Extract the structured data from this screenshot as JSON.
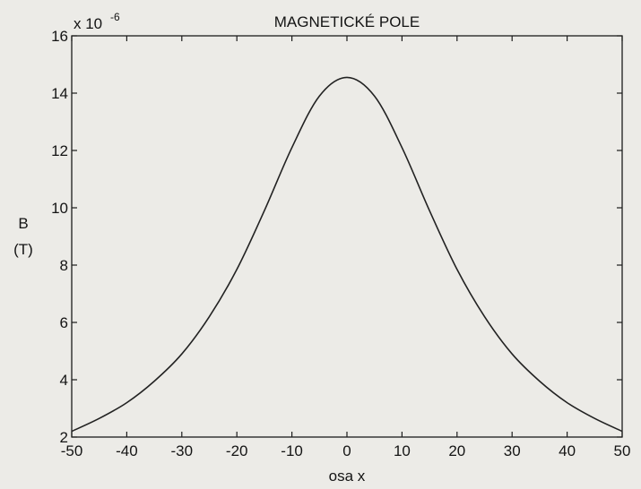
{
  "chart_data": {
    "type": "line",
    "title": "MAGNETICKÉ POLE",
    "xlabel": "osa x",
    "ylabel_line1": "B",
    "ylabel_line2": "(T)",
    "y_exponent_base": "x 10",
    "y_exponent_power": "-6",
    "xlim": [
      -50,
      50
    ],
    "ylim": [
      2,
      16
    ],
    "x_ticks": [
      -50,
      -40,
      -30,
      -20,
      -10,
      0,
      10,
      20,
      30,
      40,
      50
    ],
    "x_tick_labels": [
      "-50",
      "-40",
      "-30",
      "-20",
      "-10",
      "0",
      "10",
      "20",
      "30",
      "40",
      "50"
    ],
    "y_ticks": [
      2,
      4,
      6,
      8,
      10,
      12,
      14,
      16
    ],
    "y_tick_labels": [
      "2",
      "4",
      "6",
      "8",
      "10",
      "12",
      "14",
      "16"
    ],
    "grid": false,
    "line_color": "#222222",
    "series": [
      {
        "x": [
          -50,
          -45,
          -40,
          -35,
          -30,
          -25,
          -20,
          -15,
          -10,
          -5,
          0,
          5,
          10,
          15,
          20,
          25,
          30,
          35,
          40,
          45,
          50
        ],
        "y": [
          2.2,
          2.65,
          3.2,
          3.95,
          4.9,
          6.2,
          7.85,
          9.9,
          12.1,
          13.9,
          14.55,
          13.9,
          12.1,
          9.9,
          7.85,
          6.2,
          4.9,
          3.95,
          3.2,
          2.65,
          2.2
        ]
      }
    ]
  }
}
